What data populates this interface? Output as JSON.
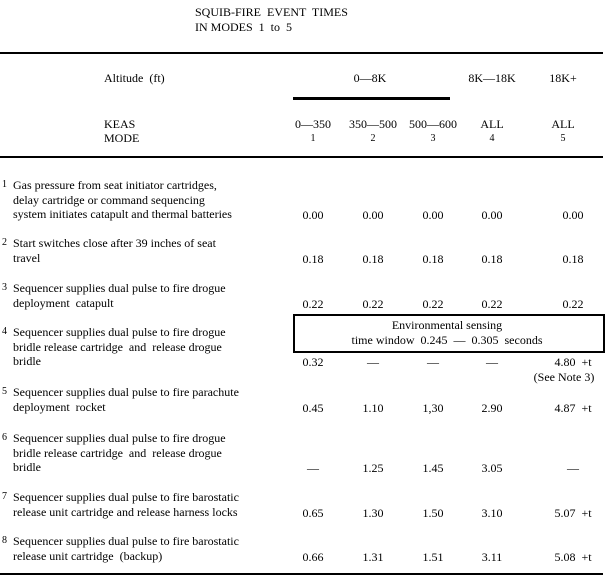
{
  "title": [
    "SQUIB-FIRE  EVENT  TIMES",
    "IN MODES  1  to  5"
  ],
  "header": {
    "altitude_label": "Altitude  (ft)",
    "altitude_groups": [
      "0—8K",
      "8K—18K",
      "18K+"
    ],
    "keas_label": "KEAS",
    "mode_label": "MODE",
    "columns": [
      {
        "keas": "0—350",
        "mode": "1"
      },
      {
        "keas": "350—500",
        "mode": "2"
      },
      {
        "keas": "500—600",
        "mode": "3"
      },
      {
        "keas": "ALL",
        "mode": "4"
      },
      {
        "keas": "ALL",
        "mode": "5"
      }
    ]
  },
  "rows": [
    {
      "number": "1",
      "lines": [
        "Gas pressure from seat initiator cartridges,",
        "delay cartridge or command sequencing",
        "system initiates catapult and thermal batteries"
      ],
      "values": [
        "0.00",
        "0.00",
        "0.00",
        "0.00",
        "0.00"
      ]
    },
    {
      "number": "2",
      "lines": [
        "Start switches close after 39 inches of seat",
        "travel"
      ],
      "values": [
        "0.18",
        "0.18",
        "0.18",
        "0.18",
        "0.18"
      ]
    },
    {
      "number": "3",
      "lines": [
        "Sequencer supplies dual pulse to fire drogue",
        "deployment  catapult"
      ],
      "values": [
        "0.22",
        "0.22",
        "0.22",
        "0.22",
        "0.22"
      ]
    },
    {
      "number": "4",
      "lines": [
        "Sequencer supplies dual pulse to fire drogue",
        "bridle release cartridge  and  release drogue",
        "bridle"
      ],
      "values": [
        "0.32",
        "—",
        "—",
        "—",
        "4.80  +t"
      ],
      "box": [
        "Environmental sensing",
        "time window  0.245  —  0.305  seconds"
      ],
      "note": "(See Note 3)"
    },
    {
      "number": "5",
      "lines": [
        "Sequencer supplies dual pulse to fire parachute",
        "deployment  rocket"
      ],
      "values": [
        "0.45",
        "1.10",
        "1,30",
        "2.90",
        "4.87  +t"
      ]
    },
    {
      "number": "6",
      "lines": [
        "Sequencer supplies dual pulse to fire drogue",
        "bridle release cartridge  and  release drogue",
        "bridle"
      ],
      "values": [
        "—",
        "1.25",
        "1.45",
        "3.05",
        "—"
      ]
    },
    {
      "number": "7",
      "lines": [
        "Sequencer supplies dual pulse to fire barostatic",
        "release unit cartridge and release harness locks"
      ],
      "values": [
        "0.65",
        "1.30",
        "1.50",
        "3.10",
        "5.07  +t"
      ]
    },
    {
      "number": "8",
      "lines": [
        "Sequencer supplies dual pulse to fire barostatic",
        "release unit cartridge  (backup)"
      ],
      "values": [
        "0.66",
        "1.31",
        "1.51",
        "3.11",
        "5.08  +t"
      ]
    }
  ]
}
